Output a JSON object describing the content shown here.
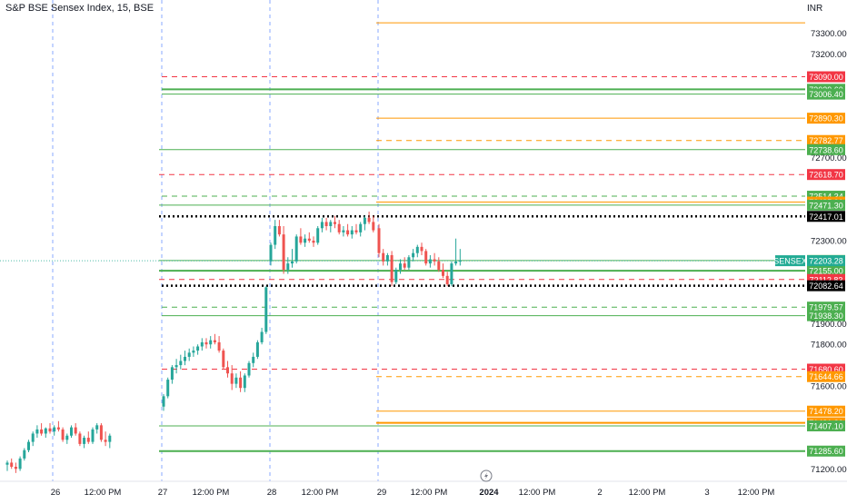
{
  "header": {
    "title": "S&P BSE Sensex Index, 15, BSE",
    "currency": "INR"
  },
  "chart_data": {
    "type": "candlestick",
    "title": "S&P BSE Sensex Index, 15, BSE",
    "colors": {
      "up": "#26a69a",
      "down": "#ef5350",
      "green_line": "#4caf50",
      "red_line": "#f23645",
      "orange_line": "#ff9800",
      "black_line": "#000000",
      "session_sep": "#2962ff",
      "last_tag": "#22ab94"
    },
    "y_axis": {
      "range": [
        71140,
        73460
      ],
      "ticks": [
        73300,
        73200,
        72700,
        72300,
        71900,
        71800,
        71600,
        71200
      ]
    },
    "x_axis": {
      "ticks": [
        "26",
        "12:00 PM",
        "27",
        "12:00 PM",
        "28",
        "12:00 PM",
        "29",
        "12:00 PM",
        "2024",
        "12:00 PM",
        "2",
        "12:00 PM",
        "3",
        "12:00 PM"
      ],
      "bold_ticks": [
        "2024"
      ]
    },
    "last_price": {
      "label": "SENSEX",
      "value": "72203.28"
    },
    "levels": [
      {
        "value": 73350.0,
        "tag": "",
        "color": "orange",
        "style": "solid",
        "from": 2
      },
      {
        "value": 73090.0,
        "tag": "73090.00",
        "color": "red",
        "style": "dashed",
        "from": 1
      },
      {
        "value": 73029.6,
        "tag": "73029.60",
        "color": "green",
        "style": "solid",
        "from": 1,
        "width": 2
      },
      {
        "value": 73006.4,
        "tag": "73006.40",
        "color": "green",
        "style": "solid",
        "from": 1
      },
      {
        "value": 72890.3,
        "tag": "72890.30",
        "color": "orange",
        "style": "solid",
        "from": 2
      },
      {
        "value": 72782.77,
        "tag": "72782.77",
        "color": "orange",
        "style": "dashed",
        "from": 2
      },
      {
        "value": 72738.6,
        "tag": "72738.60",
        "color": "green",
        "style": "solid",
        "from": 0
      },
      {
        "value": 72618.7,
        "tag": "72618.70",
        "color": "red",
        "style": "dashed",
        "from": 0
      },
      {
        "value": 72514.34,
        "tag": "72514.34",
        "color": "green",
        "style": "dashed",
        "from": 1
      },
      {
        "value": 72485.9,
        "tag": "72485.90",
        "color": "orange",
        "style": "solid",
        "from": 2
      },
      {
        "value": 72471.3,
        "tag": "72471.30",
        "color": "green",
        "style": "solid",
        "from": 0
      },
      {
        "value": 72417.01,
        "tag": "72417.01",
        "color": "black",
        "style": "dotted",
        "from": 0
      },
      {
        "value": 72204.5,
        "tag": "72204.50",
        "color": "green",
        "style": "solid",
        "from": 0
      },
      {
        "value": 72155.0,
        "tag": "72155.00",
        "color": "green",
        "style": "solid",
        "from": 0,
        "width": 2
      },
      {
        "value": 72112.83,
        "tag": "72112.83",
        "color": "red",
        "style": "dashed",
        "from": 0
      },
      {
        "value": 72082.64,
        "tag": "72082.64",
        "color": "black",
        "style": "dotted",
        "from": 1
      },
      {
        "value": 71979.57,
        "tag": "71979.57",
        "color": "green",
        "style": "dashed",
        "from": 1
      },
      {
        "value": 71938.3,
        "tag": "71938.30",
        "color": "green",
        "style": "solid",
        "from": 1
      },
      {
        "value": 71680.6,
        "tag": "71680.60",
        "color": "red",
        "style": "dashed",
        "from": 1
      },
      {
        "value": 71644.66,
        "tag": "71644.66",
        "color": "orange",
        "style": "dashed",
        "from": 2
      },
      {
        "value": 71478.2,
        "tag": "71478.20",
        "color": "orange",
        "style": "solid",
        "from": 2
      },
      {
        "value": 71421.8,
        "tag": "71421.80",
        "color": "orange",
        "style": "solid",
        "from": 2,
        "width": 2
      },
      {
        "value": 71407.1,
        "tag": "71407.10",
        "color": "green",
        "style": "solid",
        "from": 0
      },
      {
        "value": 71285.6,
        "tag": "71285.60",
        "color": "green",
        "style": "solid",
        "from": 0,
        "width": 2
      }
    ],
    "sessions": [
      {
        "date": "26",
        "ohlc": [
          [
            71220,
            71240,
            71190,
            71230
          ],
          [
            71230,
            71250,
            71200,
            71210
          ],
          [
            71210,
            71230,
            71180,
            71200
          ],
          [
            71200,
            71260,
            71190,
            71250
          ],
          [
            71250,
            71300,
            71240,
            71290
          ],
          [
            71290,
            71340,
            71280,
            71330
          ],
          [
            71330,
            71380,
            71310,
            71370
          ],
          [
            71370,
            71410,
            71350,
            71390
          ],
          [
            71390,
            71420,
            71360,
            71370
          ],
          [
            71370,
            71400,
            71350,
            71395
          ],
          [
            71395,
            71420,
            71370,
            71380
          ],
          [
            71380,
            71410,
            71360,
            71400
          ],
          [
            71400,
            71430,
            71380,
            71390
          ],
          [
            71390,
            71400,
            71330,
            71340
          ],
          [
            71340,
            71370,
            71320,
            71360
          ],
          [
            71360,
            71410,
            71350,
            71400
          ],
          [
            71400,
            71420,
            71360,
            71370
          ],
          [
            71370,
            71380,
            71310,
            71320
          ],
          [
            71320,
            71360,
            71300,
            71350
          ],
          [
            71350,
            71380,
            71320,
            71330
          ],
          [
            71330,
            71400,
            71320,
            71390
          ],
          [
            71390,
            71420,
            71370,
            71410
          ],
          [
            71410,
            71420,
            71330,
            71340
          ],
          [
            71340,
            71380,
            71310,
            71330
          ],
          [
            71330,
            71370,
            71300,
            71360
          ]
        ]
      },
      {
        "date": "27",
        "ohlc": [
          [
            71500,
            71560,
            71480,
            71550
          ],
          [
            71550,
            71640,
            71540,
            71630
          ],
          [
            71630,
            71700,
            71610,
            71690
          ],
          [
            71690,
            71730,
            71660,
            71700
          ],
          [
            71700,
            71750,
            71680,
            71720
          ],
          [
            71720,
            71770,
            71700,
            71740
          ],
          [
            71740,
            71780,
            71720,
            71760
          ],
          [
            71760,
            71790,
            71740,
            71770
          ],
          [
            71770,
            71800,
            71750,
            71790
          ],
          [
            71790,
            71830,
            71770,
            71810
          ],
          [
            71810,
            71830,
            71780,
            71800
          ],
          [
            71800,
            71840,
            71780,
            71820
          ],
          [
            71820,
            71850,
            71800,
            71810
          ],
          [
            71810,
            71840,
            71760,
            71770
          ],
          [
            71770,
            71780,
            71680,
            71690
          ],
          [
            71690,
            71720,
            71640,
            71660
          ],
          [
            71660,
            71700,
            71580,
            71610
          ],
          [
            71610,
            71660,
            71590,
            71640
          ],
          [
            71640,
            71670,
            71570,
            71590
          ],
          [
            71590,
            71660,
            71570,
            71650
          ],
          [
            71650,
            71720,
            71640,
            71710
          ],
          [
            71710,
            71760,
            71690,
            71740
          ],
          [
            71740,
            71820,
            71730,
            71810
          ],
          [
            71810,
            71880,
            71800,
            71860
          ],
          [
            71860,
            72080,
            71850,
            72075
          ]
        ]
      },
      {
        "date": "28",
        "ohlc": [
          [
            72200,
            72290,
            72180,
            72280
          ],
          [
            72280,
            72400,
            72260,
            72370
          ],
          [
            72370,
            72400,
            72320,
            72330
          ],
          [
            72330,
            72370,
            72140,
            72160
          ],
          [
            72160,
            72220,
            72140,
            72190
          ],
          [
            72190,
            72260,
            72170,
            72200
          ],
          [
            72200,
            72330,
            72190,
            72320
          ],
          [
            72320,
            72360,
            72280,
            72290
          ],
          [
            72290,
            72330,
            72270,
            72310
          ],
          [
            72310,
            72340,
            72290,
            72300
          ],
          [
            72300,
            72320,
            72270,
            72290
          ],
          [
            72290,
            72370,
            72280,
            72360
          ],
          [
            72360,
            72410,
            72340,
            72390
          ],
          [
            72390,
            72410,
            72350,
            72370
          ],
          [
            72370,
            72400,
            72340,
            72390
          ],
          [
            72390,
            72420,
            72360,
            72380
          ],
          [
            72380,
            72400,
            72330,
            72340
          ],
          [
            72340,
            72370,
            72320,
            72350
          ],
          [
            72350,
            72380,
            72320,
            72330
          ],
          [
            72330,
            72370,
            72310,
            72350
          ],
          [
            72350,
            72380,
            72330,
            72340
          ],
          [
            72340,
            72390,
            72320,
            72380
          ],
          [
            72380,
            72420,
            72350,
            72410
          ],
          [
            72410,
            72440,
            72380,
            72390
          ],
          [
            72390,
            72420,
            72340,
            72350
          ]
        ]
      },
      {
        "date": "29",
        "ohlc": [
          [
            72360,
            72380,
            72220,
            72240
          ],
          [
            72240,
            72260,
            72180,
            72200
          ],
          [
            72200,
            72240,
            72180,
            72230
          ],
          [
            72230,
            72250,
            72080,
            72100
          ],
          [
            72100,
            72170,
            72090,
            72160
          ],
          [
            72160,
            72210,
            72140,
            72190
          ],
          [
            72190,
            72220,
            72160,
            72170
          ],
          [
            72170,
            72230,
            72160,
            72220
          ],
          [
            72220,
            72260,
            72200,
            72240
          ],
          [
            72240,
            72280,
            72220,
            72270
          ],
          [
            72270,
            72290,
            72230,
            72250
          ],
          [
            72250,
            72260,
            72180,
            72190
          ],
          [
            72190,
            72230,
            72170,
            72210
          ],
          [
            72210,
            72240,
            72180,
            72200
          ],
          [
            72200,
            72220,
            72150,
            72160
          ],
          [
            72160,
            72190,
            72120,
            72130
          ],
          [
            72130,
            72150,
            72080,
            72090
          ],
          [
            72090,
            72200,
            72080,
            72190
          ],
          [
            72190,
            72310,
            72180,
            72200
          ],
          [
            72200,
            72260,
            72180,
            72203.28
          ]
        ]
      }
    ]
  }
}
